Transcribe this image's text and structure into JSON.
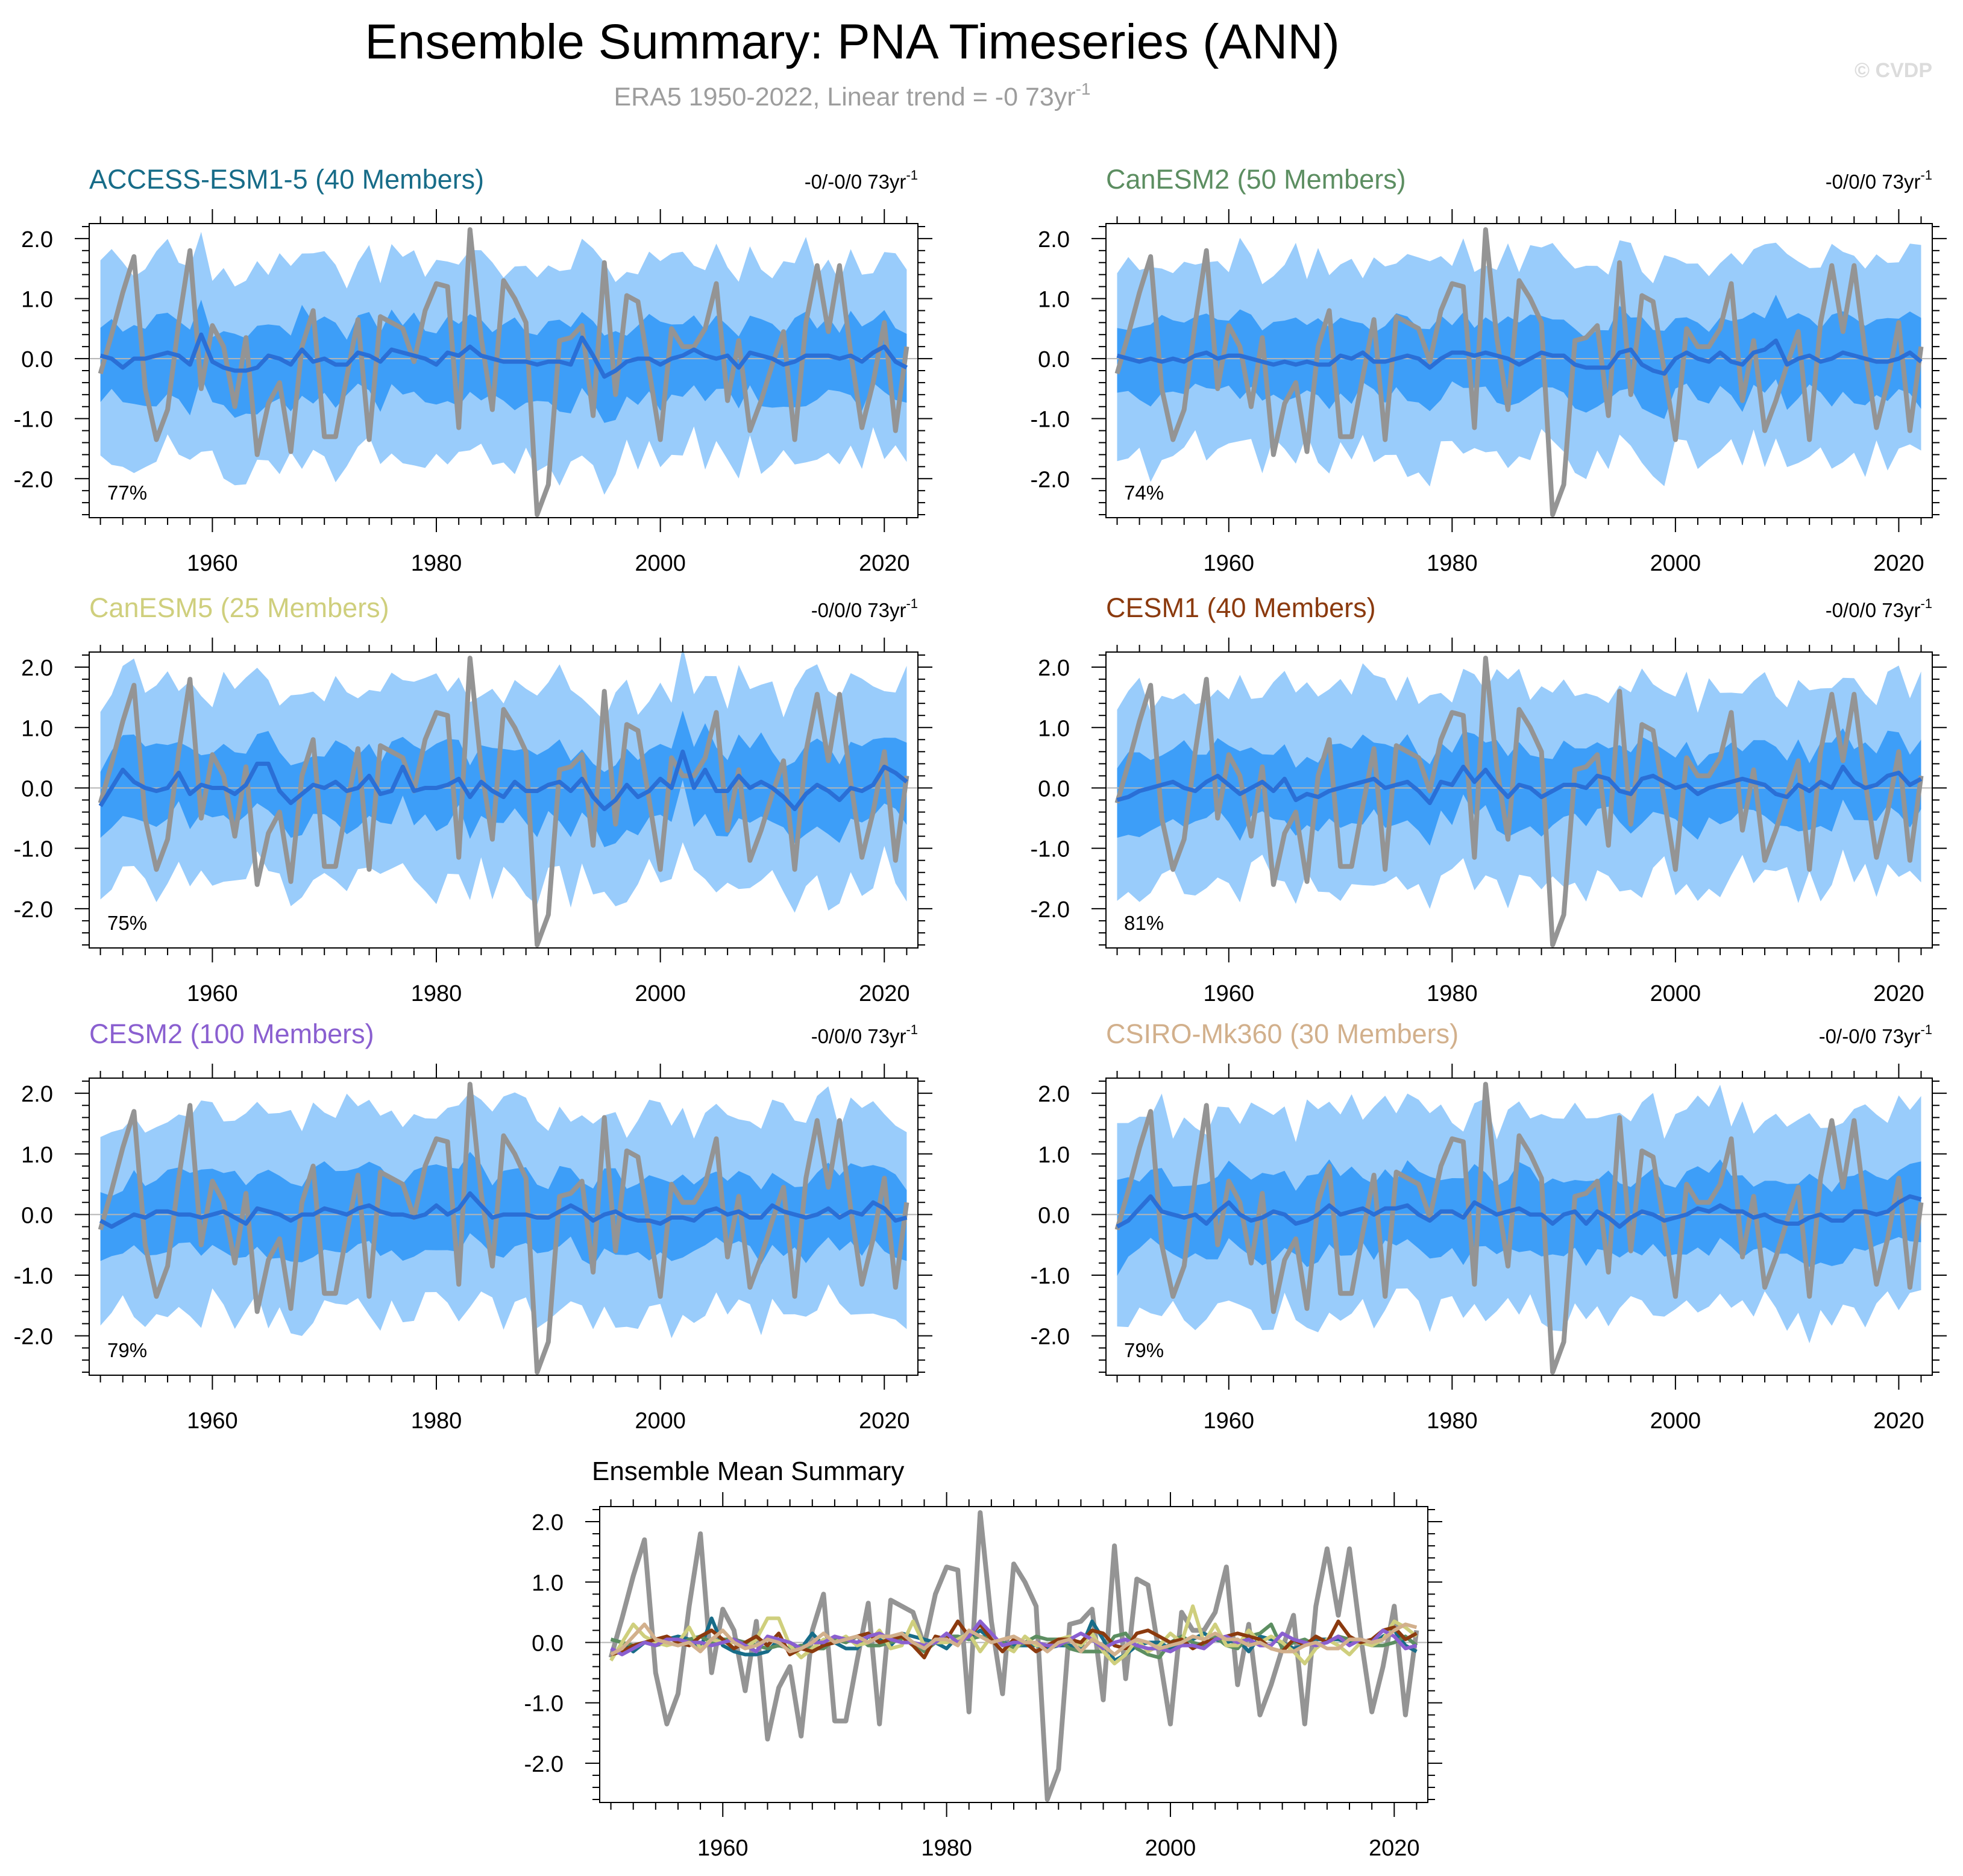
{
  "header": {
    "title": "Ensemble Summary: PNA Timeseries (ANN)",
    "subtitle_prefix": "ERA5 1950-2022, Linear trend = -0 73yr",
    "subtitle_sup": "-1",
    "watermark": "© CVDP"
  },
  "colors": {
    "band_outer": "#99ccfb",
    "band_inner": "#3d9ef8",
    "ensemble_mean": "#2a6fd6",
    "observations": "#949494",
    "zero_line": "#b4b4b4",
    "axis": "#000000",
    "title_gray": "#9d9d9d"
  },
  "chart_data": [
    {
      "type": "line",
      "name": "ACCESS-ESM1-5",
      "title": "ACCESS-ESM1-5 (40 Members)",
      "title_color": "#176c88",
      "trend_label": "-0/-0/0 73yr",
      "trend_sup": "-1",
      "pct_label": "77%",
      "xlim": [
        1949,
        2023
      ],
      "ylim": [
        -2.65,
        2.25
      ],
      "xticks": [
        1960,
        1980,
        2000,
        2020
      ],
      "xtick_labels": [
        "1960",
        "1980",
        "2000",
        "2020"
      ],
      "yticks": [
        2.0,
        1.0,
        0.0,
        -1.0,
        -2.0
      ],
      "ytick_labels": [
        "2.0",
        "1.0",
        "0.0",
        "-1.0",
        "-2.0"
      ],
      "band_bias": -0.05
    },
    {
      "type": "line",
      "name": "CanESM2",
      "title": "CanESM2 (50 Members)",
      "title_color": "#5c8e61",
      "trend_label": "-0/0/0 73yr",
      "trend_sup": "-1",
      "pct_label": "74%",
      "xlim": [
        1949,
        2023
      ],
      "ylim": [
        -2.65,
        2.25
      ],
      "xticks": [
        1960,
        1980,
        2000,
        2020
      ],
      "xtick_labels": [
        "1960",
        "1980",
        "2000",
        "2020"
      ],
      "yticks": [
        2.0,
        1.0,
        0.0,
        -1.0,
        -2.0
      ],
      "ytick_labels": [
        "2.0",
        "1.0",
        "0.0",
        "-1.0",
        "-2.0"
      ],
      "band_bias": 0.0
    },
    {
      "type": "line",
      "name": "CanESM5",
      "title": "CanESM5 (25 Members)",
      "title_color": "#cfcf7d",
      "trend_label": "-0/0/0 73yr",
      "trend_sup": "-1",
      "pct_label": "75%",
      "xlim": [
        1949,
        2023
      ],
      "ylim": [
        -2.65,
        2.25
      ],
      "xticks": [
        1960,
        1980,
        2000,
        2020
      ],
      "xtick_labels": [
        "1960",
        "1980",
        "2000",
        "2020"
      ],
      "yticks": [
        2.0,
        1.0,
        0.0,
        -1.0,
        -2.0
      ],
      "ytick_labels": [
        "2.0",
        "1.0",
        "0.0",
        "-1.0",
        "-2.0"
      ],
      "band_bias": 0.02
    },
    {
      "type": "line",
      "name": "CESM1",
      "title": "CESM1 (40 Members)",
      "title_color": "#8b3a0e",
      "trend_label": "-0/0/0 73yr",
      "trend_sup": "-1",
      "pct_label": "81%",
      "xlim": [
        1949,
        2023
      ],
      "ylim": [
        -2.65,
        2.25
      ],
      "xticks": [
        1960,
        1980,
        2000,
        2020
      ],
      "xtick_labels": [
        "1960",
        "1980",
        "2000",
        "2020"
      ],
      "yticks": [
        2.0,
        1.0,
        0.0,
        -1.0,
        -2.0
      ],
      "ytick_labels": [
        "2.0",
        "1.0",
        "0.0",
        "-1.0",
        "-2.0"
      ],
      "band_bias": 0.0
    },
    {
      "type": "line",
      "name": "CESM2",
      "title": "CESM2 (100 Members)",
      "title_color": "#8a5fd0",
      "trend_label": "-0/0/0 73yr",
      "trend_sup": "-1",
      "pct_label": "79%",
      "xlim": [
        1949,
        2023
      ],
      "ylim": [
        -2.65,
        2.25
      ],
      "xticks": [
        1960,
        1980,
        2000,
        2020
      ],
      "xtick_labels": [
        "1960",
        "1980",
        "2000",
        "2020"
      ],
      "yticks": [
        2.0,
        1.0,
        0.0,
        -1.0,
        -2.0
      ],
      "ytick_labels": [
        "2.0",
        "1.0",
        "0.0",
        "-1.0",
        "-2.0"
      ],
      "band_bias": 0.0
    },
    {
      "type": "line",
      "name": "CSIRO-Mk360",
      "title": "CSIRO-Mk360 (30 Members)",
      "title_color": "#d2b08c",
      "trend_label": "-0/-0/0 73yr",
      "trend_sup": "-1",
      "pct_label": "79%",
      "xlim": [
        1949,
        2023
      ],
      "ylim": [
        -2.65,
        2.25
      ],
      "xticks": [
        1960,
        1980,
        2000,
        2020
      ],
      "xtick_labels": [
        "1960",
        "1980",
        "2000",
        "2020"
      ],
      "yticks": [
        2.0,
        1.0,
        0.0,
        -1.0,
        -2.0
      ],
      "ytick_labels": [
        "2.0",
        "1.0",
        "0.0",
        "-1.0",
        "-2.0"
      ],
      "band_bias": -0.02
    },
    {
      "type": "line",
      "name": "Ensemble Mean Summary",
      "title": "Ensemble Mean Summary",
      "title_color": "#000000",
      "xlim": [
        1949,
        2023
      ],
      "ylim": [
        -2.65,
        2.25
      ],
      "xticks": [
        1960,
        1980,
        2000,
        2020
      ],
      "xtick_labels": [
        "1960",
        "1980",
        "2000",
        "2020"
      ],
      "yticks": [
        2.0,
        1.0,
        0.0,
        -1.0,
        -2.0
      ],
      "ytick_labels": [
        "2.0",
        "1.0",
        "0.0",
        "-1.0",
        "-2.0"
      ],
      "series_names": [
        "ACCESS-ESM1-5",
        "CanESM2",
        "CanESM5",
        "CESM1",
        "CESM2",
        "CSIRO-Mk360"
      ],
      "series_colors": [
        "#176c88",
        "#5c8e61",
        "#cfcf7d",
        "#8b3a0e",
        "#8a5fd0",
        "#d2b08c"
      ]
    }
  ],
  "observations": {
    "name": "ERA5",
    "years": [
      1950,
      1951,
      1952,
      1953,
      1954,
      1955,
      1956,
      1957,
      1958,
      1959,
      1960,
      1961,
      1962,
      1963,
      1964,
      1965,
      1966,
      1967,
      1968,
      1969,
      1970,
      1971,
      1972,
      1973,
      1974,
      1975,
      1976,
      1977,
      1978,
      1979,
      1980,
      1981,
      1982,
      1983,
      1984,
      1985,
      1986,
      1987,
      1988,
      1989,
      1990,
      1991,
      1992,
      1993,
      1994,
      1995,
      1996,
      1997,
      1998,
      1999,
      2000,
      2001,
      2002,
      2003,
      2004,
      2005,
      2006,
      2007,
      2008,
      2009,
      2010,
      2011,
      2012,
      2013,
      2014,
      2015,
      2016,
      2017,
      2018,
      2019,
      2020,
      2021,
      2022
    ],
    "values": [
      -0.25,
      0.4,
      1.1,
      1.7,
      -0.5,
      -1.35,
      -0.85,
      0.6,
      1.8,
      -0.5,
      0.55,
      0.2,
      -0.8,
      0.35,
      -1.6,
      -0.75,
      -0.4,
      -1.55,
      0.2,
      0.8,
      -1.3,
      -1.3,
      -0.3,
      0.65,
      -1.35,
      0.7,
      0.6,
      0.5,
      -0.05,
      0.8,
      1.25,
      1.2,
      -1.15,
      2.15,
      0.35,
      -0.85,
      1.3,
      1.0,
      0.6,
      -2.6,
      -2.1,
      0.3,
      0.35,
      0.55,
      -0.95,
      1.6,
      -0.6,
      1.05,
      0.95,
      -0.2,
      -1.35,
      0.5,
      0.2,
      0.2,
      0.5,
      1.25,
      -0.7,
      0.3,
      -1.2,
      -0.7,
      -0.1,
      0.45,
      -1.35,
      0.6,
      1.55,
      0.45,
      1.55,
      0.1,
      -1.15,
      -0.4,
      0.6,
      -1.2,
      0.2
    ]
  },
  "ensemble_means": {
    "ACCESS-ESM1-5": [
      0.05,
      0.0,
      -0.15,
      0.0,
      0.0,
      0.05,
      0.1,
      0.05,
      -0.1,
      0.4,
      -0.05,
      -0.15,
      -0.2,
      -0.2,
      -0.15,
      0.05,
      0.0,
      -0.1,
      0.15,
      -0.05,
      0.0,
      -0.1,
      -0.1,
      0.1,
      0.05,
      -0.05,
      0.15,
      0.1,
      0.05,
      0.0,
      -0.1,
      0.1,
      0.05,
      0.2,
      0.05,
      0.0,
      -0.05,
      -0.05,
      -0.05,
      -0.1,
      -0.05,
      -0.05,
      -0.1,
      0.35,
      0.05,
      -0.3,
      -0.2,
      -0.05,
      0.0,
      0.0,
      -0.1,
      0.0,
      0.05,
      0.15,
      0.05,
      0.0,
      0.05,
      -0.15,
      0.1,
      0.05,
      0.0,
      -0.1,
      -0.05,
      0.05,
      0.05,
      0.05,
      0.0,
      0.05,
      -0.05,
      0.1,
      0.2,
      -0.05,
      -0.15
    ],
    "CanESM2": [
      0.05,
      0.0,
      -0.05,
      0.0,
      -0.05,
      0.0,
      -0.05,
      0.05,
      0.1,
      0.0,
      0.05,
      0.05,
      0.0,
      -0.05,
      -0.1,
      -0.05,
      -0.1,
      -0.05,
      -0.1,
      -0.1,
      0.05,
      0.0,
      0.1,
      -0.05,
      -0.05,
      0.0,
      0.05,
      0.0,
      -0.15,
      0.0,
      0.1,
      0.1,
      0.05,
      0.1,
      0.05,
      0.0,
      -0.1,
      0.0,
      0.1,
      0.05,
      0.05,
      -0.1,
      -0.15,
      -0.15,
      -0.15,
      0.1,
      0.15,
      -0.1,
      -0.2,
      -0.25,
      0.0,
      0.1,
      0.0,
      -0.05,
      0.1,
      -0.05,
      -0.1,
      0.1,
      0.15,
      0.3,
      -0.1,
      0.0,
      0.05,
      -0.05,
      0.0,
      0.1,
      0.05,
      0.0,
      -0.05,
      -0.05,
      0.0,
      0.1,
      -0.05
    ],
    "CanESM5": [
      -0.3,
      0.0,
      0.3,
      0.1,
      0.0,
      -0.05,
      0.0,
      0.25,
      -0.1,
      0.05,
      0.0,
      0.0,
      -0.1,
      0.05,
      0.4,
      0.4,
      -0.05,
      -0.25,
      -0.1,
      0.05,
      0.0,
      0.1,
      -0.05,
      0.0,
      0.2,
      -0.1,
      -0.05,
      0.35,
      -0.05,
      0.0,
      0.0,
      0.05,
      0.15,
      -0.15,
      0.1,
      -0.05,
      -0.15,
      0.1,
      -0.05,
      -0.05,
      0.05,
      0.1,
      -0.05,
      0.15,
      -0.15,
      -0.35,
      -0.2,
      0.05,
      -0.15,
      -0.05,
      0.15,
      0.0,
      0.6,
      0.0,
      0.3,
      -0.05,
      -0.05,
      0.2,
      0.0,
      0.1,
      0.0,
      -0.15,
      -0.35,
      -0.1,
      0.05,
      -0.05,
      -0.2,
      0.0,
      -0.05,
      0.05,
      0.35,
      0.25,
      0.1
    ],
    "CESM1": [
      -0.2,
      -0.15,
      -0.05,
      0.0,
      0.05,
      0.1,
      0.0,
      -0.05,
      0.1,
      0.2,
      0.05,
      -0.1,
      0.0,
      0.1,
      -0.05,
      0.15,
      -0.2,
      -0.1,
      -0.15,
      -0.05,
      0.0,
      0.05,
      0.1,
      0.15,
      0.0,
      0.05,
      0.1,
      -0.05,
      -0.25,
      0.1,
      0.05,
      0.35,
      0.1,
      0.3,
      0.05,
      -0.15,
      0.05,
      0.0,
      -0.15,
      -0.05,
      0.05,
      0.05,
      0.0,
      0.2,
      0.15,
      -0.05,
      -0.1,
      0.15,
      0.2,
      0.1,
      0.0,
      0.05,
      -0.1,
      0.0,
      0.05,
      0.1,
      0.15,
      0.1,
      0.05,
      -0.1,
      -0.15,
      0.05,
      -0.05,
      0.1,
      0.0,
      0.35,
      0.1,
      0.0,
      0.05,
      0.2,
      0.25,
      0.05,
      0.15
    ],
    "CESM2": [
      -0.1,
      -0.2,
      -0.1,
      0.0,
      -0.05,
      0.05,
      0.05,
      0.0,
      0.0,
      -0.05,
      0.0,
      0.05,
      -0.05,
      -0.15,
      0.1,
      0.05,
      0.0,
      -0.1,
      0.0,
      0.0,
      0.1,
      0.05,
      0.0,
      0.1,
      0.15,
      0.05,
      0.0,
      0.0,
      -0.05,
      0.0,
      0.15,
      0.0,
      0.1,
      0.35,
      0.15,
      -0.05,
      0.0,
      0.0,
      0.0,
      -0.05,
      -0.05,
      0.05,
      0.15,
      0.05,
      -0.1,
      0.0,
      0.05,
      -0.05,
      -0.1,
      -0.1,
      -0.15,
      -0.05,
      -0.05,
      -0.1,
      0.05,
      0.1,
      0.0,
      0.05,
      -0.05,
      -0.05,
      0.15,
      0.05,
      0.0,
      -0.05,
      0.0,
      0.1,
      -0.05,
      0.05,
      0.0,
      0.2,
      0.1,
      -0.1,
      -0.05
    ],
    "CSIRO-Mk360": [
      -0.2,
      -0.1,
      0.1,
      0.3,
      0.05,
      0.0,
      -0.05,
      0.0,
      -0.15,
      0.05,
      0.2,
      0.0,
      -0.1,
      -0.05,
      0.05,
      0.0,
      -0.15,
      -0.1,
      0.0,
      0.15,
      0.0,
      0.05,
      0.1,
      0.0,
      0.1,
      0.1,
      0.15,
      0.0,
      -0.1,
      0.05,
      0.05,
      -0.05,
      0.2,
      0.1,
      0.0,
      0.05,
      0.1,
      0.0,
      0.0,
      -0.15,
      0.0,
      0.05,
      -0.15,
      0.05,
      -0.05,
      -0.2,
      -0.05,
      0.05,
      0.0,
      -0.1,
      -0.05,
      0.0,
      0.1,
      0.05,
      0.15,
      0.05,
      0.05,
      -0.05,
      0.0,
      -0.1,
      -0.15,
      -0.15,
      -0.05,
      0.0,
      -0.1,
      -0.1,
      0.05,
      0.05,
      0.0,
      0.05,
      0.2,
      0.3,
      0.25
    ]
  }
}
